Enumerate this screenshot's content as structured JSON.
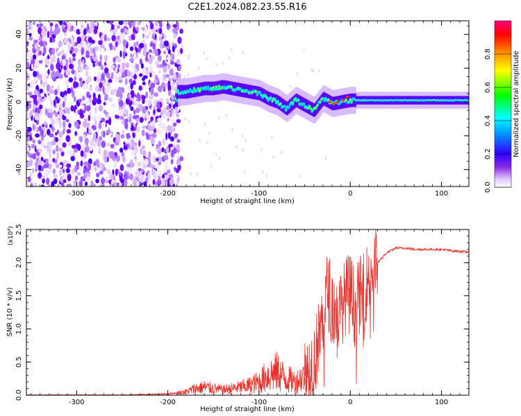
{
  "chart_data": [
    {
      "type": "heatmap",
      "title": "C2E1.2024.082.23.55.R16",
      "xlabel": "Height of straight line (km)",
      "ylabel": "Frequency (Hz)",
      "xlim": [
        -355,
        130
      ],
      "ylim": [
        -50,
        48
      ],
      "x_ticks": [
        -300,
        -200,
        -100,
        0,
        100
      ],
      "y_ticks": [
        -40,
        -20,
        0,
        20,
        40
      ],
      "colorbar": {
        "label": "Normalized spectral amplitude",
        "range": [
          0.0,
          1.0
        ],
        "ticks": [
          "0.0",
          "0.2",
          "0.4",
          "0.6",
          "0.8"
        ],
        "tick_values": [
          0.0,
          0.2,
          0.4,
          0.6,
          0.8
        ],
        "colors": [
          "#ffffff",
          "#e0c8ff",
          "#8a2be2",
          "#3000ff",
          "#00ffff",
          "#00ff00",
          "#ffff00",
          "#ff8000",
          "#ff0000",
          "#ff0080"
        ]
      },
      "signal_trace": {
        "x": [
          -190,
          -180,
          -170,
          -160,
          -150,
          -140,
          -130,
          -120,
          -110,
          -100,
          -90,
          -80,
          -70,
          -60,
          -50,
          -40,
          -30,
          -20,
          -10,
          0,
          20,
          60,
          100,
          130
        ],
        "y": [
          6,
          6,
          7,
          8,
          8,
          9,
          8,
          7,
          6,
          5,
          2,
          0,
          -4,
          1,
          -2,
          -5,
          2,
          -1,
          0,
          1,
          1,
          1,
          1,
          1
        ]
      }
    },
    {
      "type": "line",
      "xlabel": "Height of straight line (km)",
      "ylabel": "SNR (10 * v/v)",
      "y_multiplier": "(x10",
      "y_multiplier_exp": "4",
      "y_multiplier_close": ")",
      "xlim": [
        -355,
        130
      ],
      "ylim": [
        0,
        2.5
      ],
      "x_ticks": [
        -300,
        -200,
        -100,
        0,
        100
      ],
      "y_ticks": [
        "0.0",
        "0.5",
        "1.0",
        "1.5",
        "2.0",
        "2.5"
      ],
      "y_tick_values": [
        0.0,
        0.5,
        1.0,
        1.5,
        2.0,
        2.5
      ],
      "color": "#e8302a",
      "x": [
        -355,
        -300,
        -250,
        -200,
        -180,
        -170,
        -160,
        -150,
        -140,
        -130,
        -120,
        -110,
        -100,
        -90,
        -80,
        -70,
        -60,
        -50,
        -40,
        -35,
        -30,
        -25,
        -20,
        -15,
        -10,
        -5,
        0,
        5,
        10,
        15,
        20,
        25,
        30,
        40,
        50,
        60,
        70,
        80,
        90,
        100,
        110,
        120,
        130
      ],
      "y": [
        0.0,
        0.0,
        0.0,
        0.02,
        0.05,
        0.1,
        0.12,
        0.1,
        0.08,
        0.1,
        0.12,
        0.15,
        0.2,
        0.3,
        0.35,
        0.25,
        0.2,
        0.3,
        0.5,
        0.8,
        1.2,
        1.6,
        1.4,
        1.2,
        1.3,
        1.5,
        1.6,
        1.3,
        1.5,
        1.55,
        1.8,
        1.9,
        2.0,
        2.15,
        2.22,
        2.22,
        2.2,
        2.2,
        2.2,
        2.2,
        2.18,
        2.17,
        2.16
      ]
    }
  ]
}
